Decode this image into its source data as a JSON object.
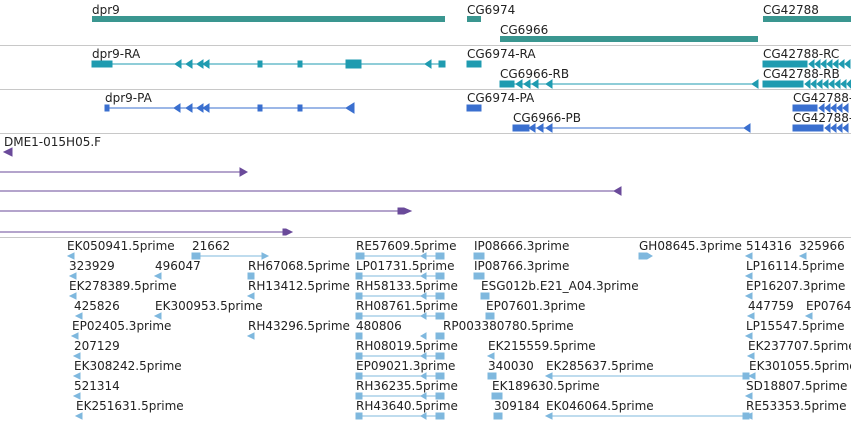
{
  "colors": {
    "gene": "#3a9690",
    "transcript_ra": "#1f9bb0",
    "transcript_pa": "#3a6fcf",
    "clone": "#6a4a9a",
    "est": "#7fb8de",
    "divider": "#c8c8c8"
  },
  "genes_track": {
    "labels": [
      "dpr9",
      "CG6974",
      "CG6966",
      "CG42788"
    ]
  },
  "transcripts_track": {
    "labels": [
      "dpr9-RA",
      "CG6974-RA",
      "CG6966-RB",
      "CG42788-RC",
      "CG42788-RB"
    ]
  },
  "proteins_track": {
    "labels": [
      "dpr9-PA",
      "CG6974-PA",
      "CG6966-PB",
      "CG42788-",
      "CG42788-"
    ]
  },
  "clone_track": {
    "label": "DME1-015H05.F"
  },
  "est_track": {
    "labels": [
      "EK050941.5prime",
      "21662",
      "RE57609.5prime",
      "IP08666.3prime",
      "GH08645.3prime",
      "514316",
      "325966",
      "323929",
      "496047",
      "RH67068.5prime",
      "LP01731.5prime",
      "IP08766.3prime",
      "LP16114.5prime",
      "EK278389.5prime",
      "RH13412.5prime",
      "RH58133.5prime",
      "ESG012b.E21_A04.3prime",
      "EP16207.3prime",
      "425826",
      "EK300953.5prime",
      "RH08761.5prime",
      "EP07601.3prime",
      "447759",
      "EP0764",
      "EP02405.3prime",
      "RH43296.5prime",
      "480806",
      "RP003380780.5prime",
      "LP15547.5prime",
      "207129",
      "RH08019.5prime",
      "EK215559.5prime",
      "EK237707.5prime",
      "EK308242.5prime",
      "EP09021.3prime",
      "340030",
      "EK285637.5prime",
      "EK301055.5prime",
      "521314",
      "RH36235.5prime",
      "EK189630.5prime",
      "SD18807.5prime",
      "EK251631.5prime",
      "RH43640.5prime",
      "309184",
      "EK046064.5prime",
      "RE53353.5prime"
    ]
  }
}
